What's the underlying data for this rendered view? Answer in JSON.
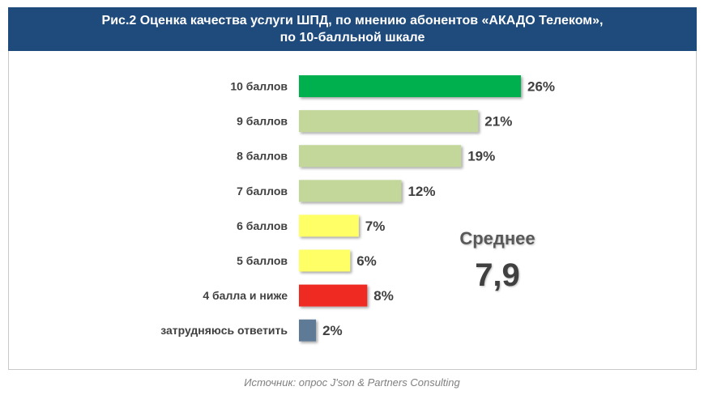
{
  "header": {
    "title_line1": "Рис.2 Оценка качества услуги ШПД, по мнению абонентов «АКАДО Телеком»,",
    "title_line2": "по 10-балльной шкале"
  },
  "chart_data": {
    "type": "bar",
    "orientation": "horizontal",
    "categories": [
      "10 баллов",
      "9 баллов",
      "8 баллов",
      "7 баллов",
      "6 баллов",
      "5 баллов",
      "4 балла и ниже",
      "затрудняюсь ответить"
    ],
    "values": [
      26,
      21,
      19,
      12,
      7,
      6,
      8,
      2
    ],
    "value_labels": [
      "26%",
      "21%",
      "19%",
      "12%",
      "7%",
      "6%",
      "8%",
      "2%"
    ],
    "unit": "%",
    "bar_colors": [
      "#00b050",
      "#c4d79b",
      "#c4d79b",
      "#c4d79b",
      "#ffff66",
      "#ffff66",
      "#ee2b24",
      "#5f7a96"
    ],
    "xlim": [
      0,
      26
    ],
    "grid": false,
    "legend": "none"
  },
  "average": {
    "label": "Среднее",
    "value": "7,9"
  },
  "footer": {
    "source": "Источник: опрос J'son & Partners Consulting"
  }
}
